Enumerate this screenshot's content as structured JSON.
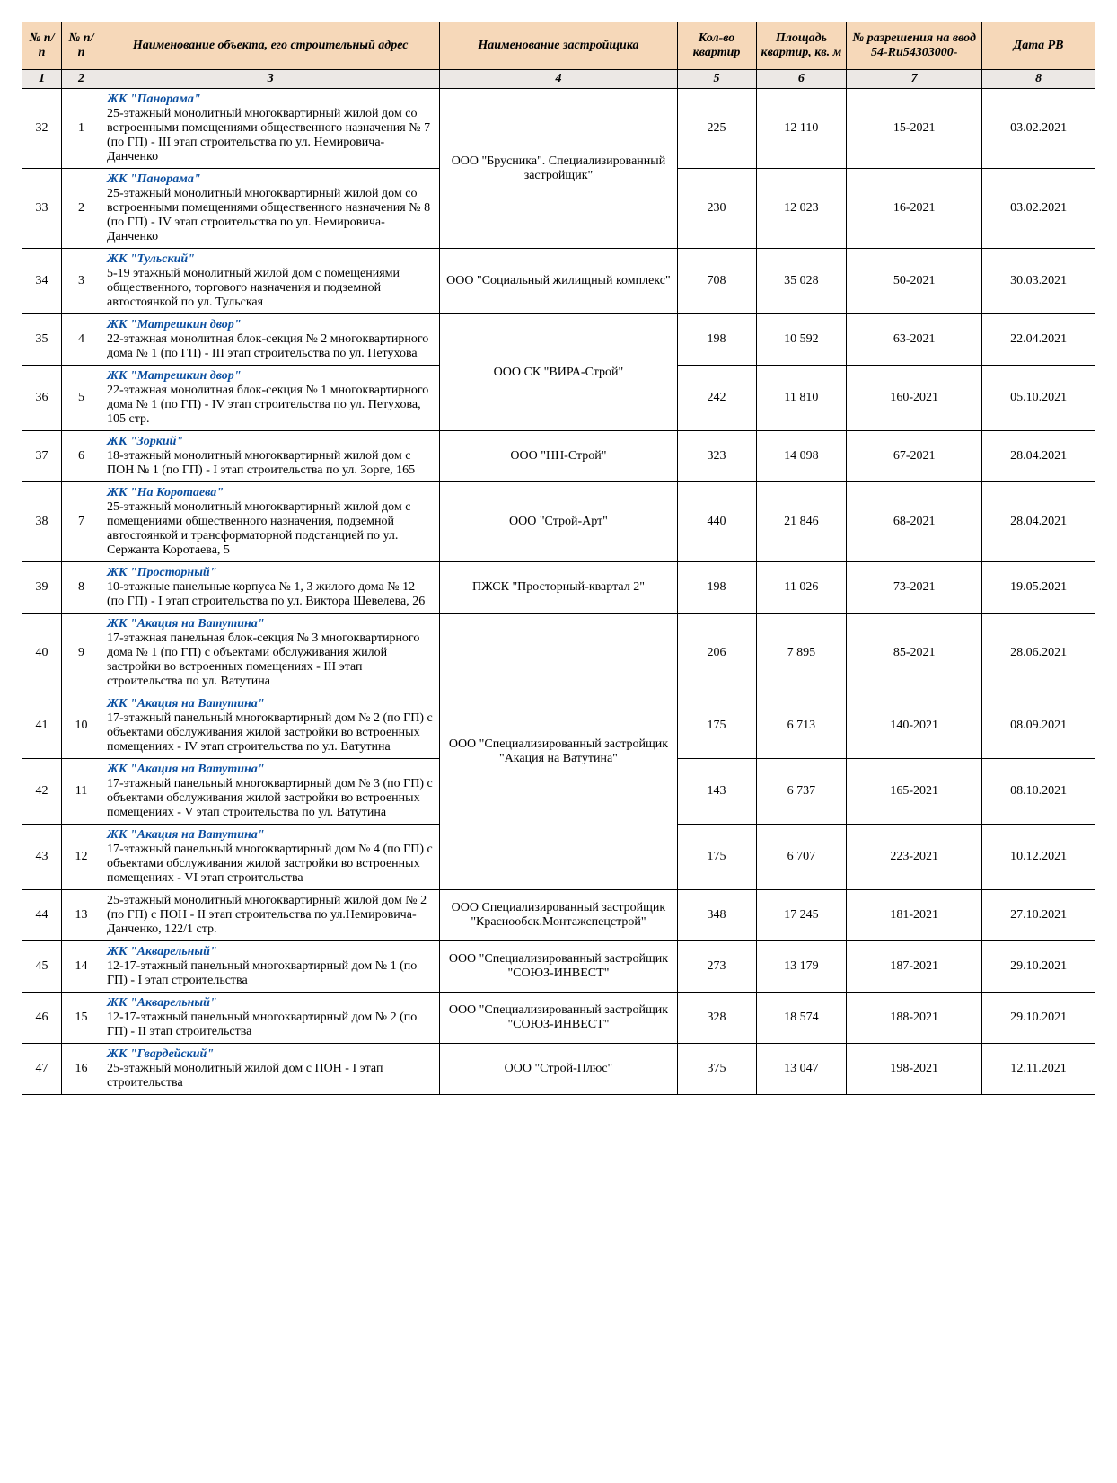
{
  "colors": {
    "header_bg": "#f6d8b9",
    "numrow_bg": "#ece8e5",
    "project_name_color": "#0b4fa0",
    "border_color": "#000000",
    "page_bg": "#ffffff"
  },
  "fonts": {
    "family": "Times New Roman",
    "base_size_pt": 11,
    "header_style": "bold italic",
    "project_style": "bold italic"
  },
  "column_widths_pct": [
    3.5,
    3.5,
    30,
    21,
    7,
    8,
    12,
    10
  ],
  "headers": {
    "c1": "№ п/п",
    "c2": "№ п/п",
    "c3": "Наименование объекта, его строительный адрес",
    "c4": "Наименование застройщика",
    "c5": "Кол-во квартир",
    "c6": "Площадь квартир, кв. м",
    "c7": "№ разрешения на ввод 54-Ru54303000-",
    "c8": "Дата РВ"
  },
  "colnums": {
    "c1": "1",
    "c2": "2",
    "c3": "3",
    "c4": "4",
    "c5": "5",
    "c6": "6",
    "c7": "7",
    "c8": "8"
  },
  "groups": [
    {
      "developer": "ООО \"Брусника\". Специализированный застройщик\"",
      "rows": [
        {
          "n1": "32",
          "n2": "1",
          "proj": "ЖК \"Панорама\"",
          "desc": "25-этажный монолитный многоквартирный жилой дом со встроенными помещениями общественного назначения № 7 (по ГП) - III этап строительства по ул. Немировича-Данченко",
          "qty": "225",
          "area": "12 110",
          "permit": "15-2021",
          "date": "03.02.2021"
        },
        {
          "n1": "33",
          "n2": "2",
          "proj": "ЖК \"Панорама\"",
          "desc": "25-этажный монолитный многоквартирный жилой дом со встроенными помещениями общественного назначения  № 8 (по ГП) - IV этап строительства по ул. Немировича-Данченко",
          "qty": "230",
          "area": "12 023",
          "permit": "16-2021",
          "date": "03.02.2021"
        }
      ]
    },
    {
      "developer": "ООО \"Социальный жилищный комплекс\"",
      "rows": [
        {
          "n1": "34",
          "n2": "3",
          "proj": "ЖК \"Тульский\"",
          "desc": "5-19 этажный монолитный жилой дом с помещениями общественного, торгового назначения и подземной автостоянкой по ул. Тульская",
          "qty": "708",
          "area": "35 028",
          "permit": "50-2021",
          "date": "30.03.2021"
        }
      ]
    },
    {
      "developer": "ООО СК \"ВИРА-Строй\"",
      "rows": [
        {
          "n1": "35",
          "n2": "4",
          "proj": "ЖК \"Матрешкин двор\"",
          "desc": "22-этажная монолитная блок-секция № 2 многоквартирного дома № 1 (по ГП) - III этап строительства по ул. Петухова",
          "qty": "198",
          "area": "10 592",
          "permit": "63-2021",
          "date": "22.04.2021"
        },
        {
          "n1": "36",
          "n2": "5",
          "proj": "ЖК \"Матрешкин двор\"",
          "desc": "22-этажная монолитная блок-секция № 1 многоквартирного дома № 1 (по ГП) - IV этап строительства по ул. Петухова, 105 стр.",
          "qty": "242",
          "area": "11 810",
          "permit": "160-2021",
          "date": "05.10.2021"
        }
      ]
    },
    {
      "developer": "ООО \"НН-Строй\"",
      "rows": [
        {
          "n1": "37",
          "n2": "6",
          "proj": "ЖК \"Зоркий\"",
          "desc": "18-этажный монолитный многоквартирный жилой дом с ПОН № 1 (по ГП) - I этап строительства по ул. Зорге, 165",
          "qty": "323",
          "area": "14 098",
          "permit": "67-2021",
          "date": "28.04.2021"
        }
      ]
    },
    {
      "developer": "ООО \"Строй-Арт\"",
      "rows": [
        {
          "n1": "38",
          "n2": "7",
          "proj": "ЖК \"На Коротаева\"",
          "desc": "25-этажный монолитный многоквартирный жилой дом с помещениями общественного назначения, подземной автостоянкой и трансформаторной подстанцией по ул. Сержанта Коротаева, 5",
          "qty": "440",
          "area": "21 846",
          "permit": "68-2021",
          "date": "28.04.2021"
        }
      ]
    },
    {
      "developer": "ПЖСК \"Просторный-квартал 2\"",
      "rows": [
        {
          "n1": "39",
          "n2": "8",
          "proj": "ЖК \"Просторный\"",
          "desc": "10-этажные панельные корпуса № 1, 3 жилого дома № 12 (по ГП) - I этап строительства по ул. Виктора Шевелева, 26",
          "qty": "198",
          "area": "11 026",
          "permit": "73-2021",
          "date": "19.05.2021"
        }
      ]
    },
    {
      "developer": "ООО \"Специализированный застройщик \"Акация на Ватутина\"",
      "rows": [
        {
          "n1": "40",
          "n2": "9",
          "proj": "ЖК \"Акация на Ватутина\"",
          "desc": "17-этажная панельная блок-секция № 3 многоквартирного дома № 1 (по ГП) с объектами обслуживания жилой застройки во встроенных помещениях - III этап строительства по ул. Ватутина",
          "qty": "206",
          "area": "7 895",
          "permit": "85-2021",
          "date": "28.06.2021"
        },
        {
          "n1": "41",
          "n2": "10",
          "proj": "ЖК \"Акация на Ватутина\"",
          "desc": "17-этажный панельный многоквартирный дом № 2 (по ГП) с объектами обслуживания жилой застройки во встроенных помещениях - IV этап строительства по ул. Ватутина",
          "qty": "175",
          "area": "6 713",
          "permit": "140-2021",
          "date": "08.09.2021"
        },
        {
          "n1": "42",
          "n2": "11",
          "proj": "ЖК \"Акация на Ватутина\"",
          "desc": "17-этажный панельный многоквартирный дом № 3 (по ГП) с объектами обслуживания жилой застройки во встроенных помещениях - V этап строительства по ул. Ватутина",
          "qty": "143",
          "area": "6 737",
          "permit": "165-2021",
          "date": "08.10.2021"
        },
        {
          "n1": "43",
          "n2": "12",
          "proj": "ЖК \"Акация на Ватутина\"",
          "desc": "17-этажный панельный многоквартирный дом № 4 (по ГП) с объектами обслуживания жилой застройки во встроенных помещениях - VI этап строительства",
          "qty": "175",
          "area": "6 707",
          "permit": "223-2021",
          "date": "10.12.2021"
        }
      ]
    },
    {
      "developer": "ООО Специализированный застройщик \"Краснообск.Монтажспецстрой\"",
      "rows": [
        {
          "n1": "44",
          "n2": "13",
          "proj": "",
          "desc": "25-этажный монолитный многоквартирный жилой дом № 2 (по ГП) с ПОН - II этап строительства по ул.Немировича-Данченко, 122/1 стр.",
          "qty": "348",
          "area": "17 245",
          "permit": "181-2021",
          "date": "27.10.2021"
        }
      ]
    },
    {
      "developer": "ООО \"Специализированный застройщик \"СОЮЗ-ИНВЕСТ\"",
      "rows": [
        {
          "n1": "45",
          "n2": "14",
          "proj": "ЖК \"Акварельный\"",
          "desc": "12-17-этажный панельный многоквартирный дом № 1 (по ГП) - I этап строительства",
          "qty": "273",
          "area": "13 179",
          "permit": "187-2021",
          "date": "29.10.2021"
        }
      ]
    },
    {
      "developer": "ООО \"Специализированный застройщик \"СОЮЗ-ИНВЕСТ\"",
      "rows": [
        {
          "n1": "46",
          "n2": "15",
          "proj": "ЖК \"Акварельный\"",
          "desc": "12-17-этажный панельный многоквартирный дом № 2 (по ГП) - II этап строительства",
          "qty": "328",
          "area": "18 574",
          "permit": "188-2021",
          "date": "29.10.2021"
        }
      ]
    },
    {
      "developer": "ООО \"Строй-Плюс\"",
      "rows": [
        {
          "n1": "47",
          "n2": "16",
          "proj": "ЖК \"Гвардейский\"",
          "desc": "25-этажный монолитный жилой дом с ПОН - I этап строительства",
          "qty": "375",
          "area": "13 047",
          "permit": "198-2021",
          "date": "12.11.2021"
        }
      ]
    }
  ]
}
